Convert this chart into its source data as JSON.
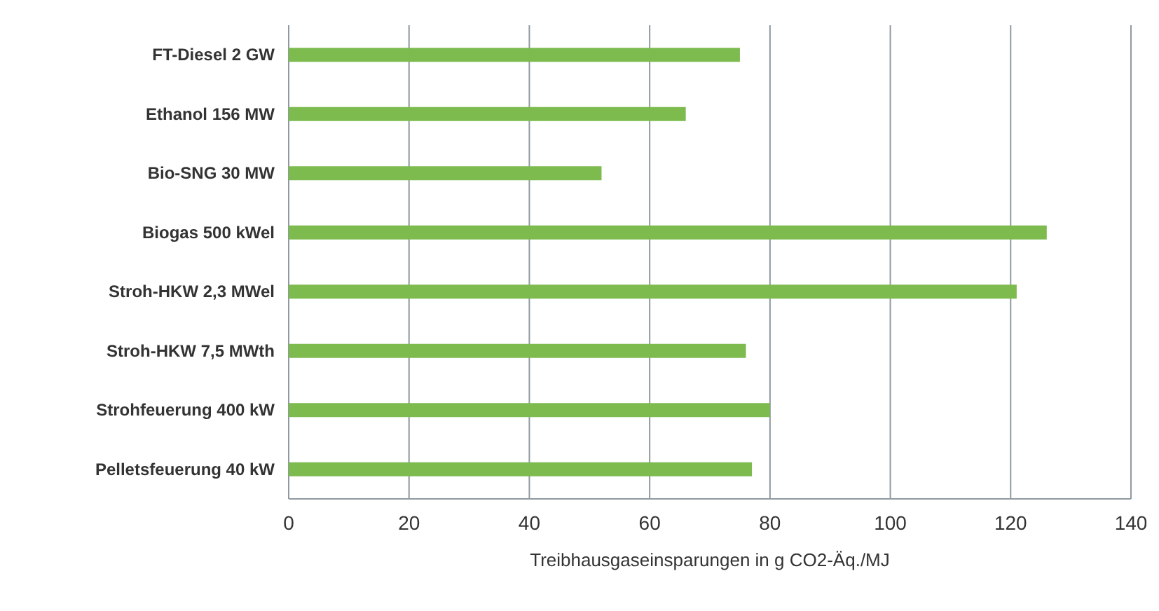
{
  "chart_data": {
    "type": "bar",
    "orientation": "horizontal",
    "xlabel": "Treibhausgaseinsparungen in g CO2-Äq./MJ",
    "categories": [
      "FT-Diesel 2 GW",
      "Ethanol 156 MW",
      "Bio-SNG 30 MW",
      "Biogas 500 kWel",
      "Stroh-HKW 2,3 MWel",
      "Stroh-HKW 7,5 MWth",
      "Strohfeuerung 400 kW",
      "Pelletsfeuerung 40 kW"
    ],
    "values": [
      75,
      66,
      52,
      126,
      121,
      76,
      80,
      77
    ],
    "color": "#7dbb4f",
    "xlim": [
      0,
      140
    ],
    "xticks": [
      0,
      20,
      40,
      60,
      80,
      100,
      120,
      140
    ],
    "grid": "x"
  }
}
